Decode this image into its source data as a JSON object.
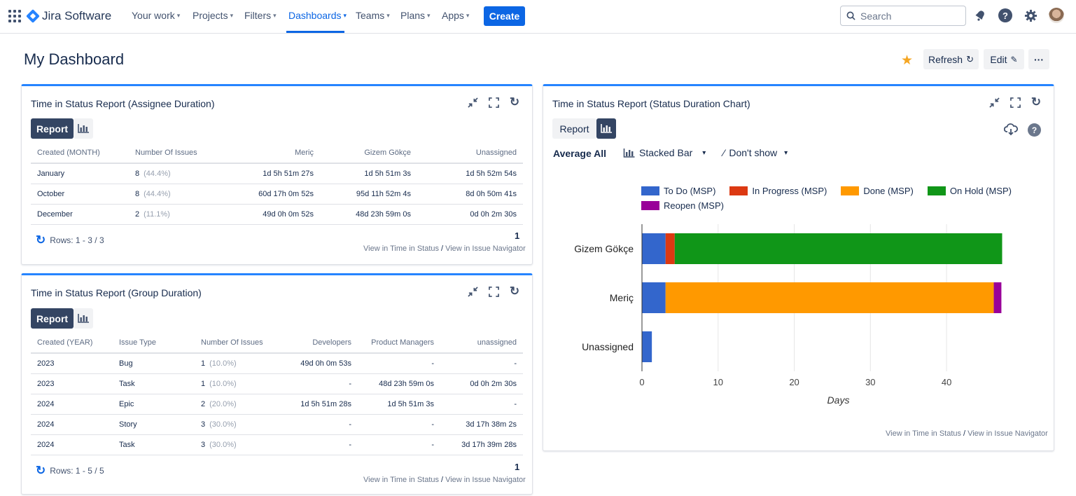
{
  "topnav": {
    "product": "Jira Software",
    "items": [
      {
        "label": "Your work"
      },
      {
        "label": "Projects"
      },
      {
        "label": "Filters"
      },
      {
        "label": "Dashboards"
      },
      {
        "label": "Teams"
      },
      {
        "label": "Plans"
      },
      {
        "label": "Apps"
      }
    ],
    "active_item": "Dashboards",
    "create_label": "Create",
    "search_placeholder": "Search",
    "icons": [
      "app-switcher-icon",
      "notifications-icon",
      "help-icon",
      "settings-icon",
      "avatar"
    ]
  },
  "header": {
    "title": "My Dashboard",
    "refresh_label": "Refresh",
    "edit_label": "Edit",
    "more_label": "···",
    "starred": true
  },
  "gadget1": {
    "title": "Time in Status Report (Assignee Duration)",
    "report_label": "Report",
    "columns": [
      "Created (MONTH)",
      "Number Of Issues",
      "Meriç",
      "Gizem Gökçe",
      "Unassigned"
    ],
    "rows": [
      [
        "January",
        "8",
        "(44.4%)",
        "1d 5h 51m 27s",
        "1d 5h 51m 3s",
        "1d 5h 52m 54s"
      ],
      [
        "October",
        "8",
        "(44.4%)",
        "60d 17h 0m 52s",
        "95d 11h 52m 4s",
        "8d 0h 50m 41s"
      ],
      [
        "December",
        "2",
        "(11.1%)",
        "49d 0h 0m 52s",
        "48d 23h 59m 0s",
        "0d 0h 2m 30s"
      ]
    ],
    "rows_label": "Rows: 1 - 3 / 3",
    "page": "1",
    "link_time": "View in Time in Status",
    "link_sep": "/",
    "link_nav": "View in Issue Navigator"
  },
  "gadget2": {
    "title": "Time in Status Report (Group Duration)",
    "report_label": "Report",
    "columns": [
      "Created (YEAR)",
      "Issue Type",
      "Number Of Issues",
      "Developers",
      "Product Managers",
      "unassigned"
    ],
    "rows": [
      [
        "2023",
        "Bug",
        "1",
        "(10.0%)",
        "49d 0h 0m 53s",
        "-",
        "-"
      ],
      [
        "2023",
        "Task",
        "1",
        "(10.0%)",
        "-",
        "48d 23h 59m 0s",
        "0d 0h 2m 30s"
      ],
      [
        "2024",
        "Epic",
        "2",
        "(20.0%)",
        "1d 5h 51m 28s",
        "1d 5h 51m 3s",
        "-"
      ],
      [
        "2024",
        "Story",
        "3",
        "(30.0%)",
        "-",
        "-",
        "3d 17h 38m 2s"
      ],
      [
        "2024",
        "Task",
        "3",
        "(30.0%)",
        "-",
        "-",
        "3d 17h 39m 28s"
      ]
    ],
    "rows_label": "Rows: 1 - 5 / 5",
    "page": "1",
    "link_time": "View in Time in Status",
    "link_sep": "/",
    "link_nav": "View in Issue Navigator"
  },
  "gadget3": {
    "title": "Time in Status Report (Status Duration Chart)",
    "report_label": "Report",
    "average_label": "Average All",
    "chart_type_label": "Stacked Bar",
    "show_label": "Don't show",
    "link_time": "View in Time in Status",
    "link_sep": "/",
    "link_nav": "View in Issue Navigator"
  },
  "chart_data": {
    "type": "bar",
    "orientation": "horizontal",
    "stacked": true,
    "categories": [
      "Gizem Gökçe",
      "Meriç",
      "Unassigned"
    ],
    "series": [
      {
        "name": "To Do (MSP)",
        "color": "#3366cc",
        "values": [
          3.1,
          3.1,
          1.3
        ]
      },
      {
        "name": "In Progress (MSP)",
        "color": "#dc3912",
        "values": [
          1.2,
          0,
          0
        ]
      },
      {
        "name": "Done (MSP)",
        "color": "#ff9900",
        "values": [
          0,
          43.1,
          0
        ]
      },
      {
        "name": "On Hold (MSP)",
        "color": "#109618",
        "values": [
          43.0,
          0,
          0
        ]
      },
      {
        "name": "Reopen (MSP)",
        "color": "#990099",
        "values": [
          0,
          1.0,
          0
        ]
      }
    ],
    "xlabel": "Days",
    "xticks": [
      0,
      10,
      20,
      30,
      40
    ],
    "xlim": [
      0,
      49
    ],
    "grid": true,
    "legend_position": "top"
  },
  "colors": {
    "accent": "#0c66e4",
    "gadget_border": "#2684ff",
    "dark_button": "#344563",
    "star": "#f5a623"
  }
}
